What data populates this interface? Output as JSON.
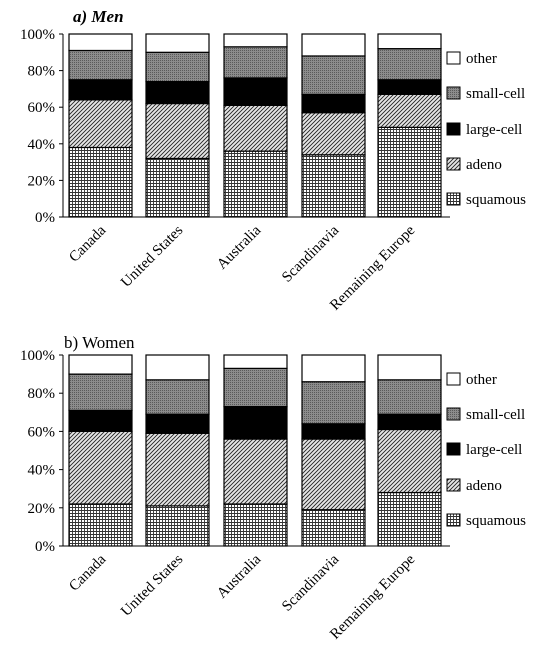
{
  "chart_data": [
    {
      "type": "bar",
      "stacked": true,
      "title": "a) Men",
      "categories": [
        "Canada",
        "United States",
        "Australia",
        "Scandinavia",
        "Remaining Europe"
      ],
      "series": [
        {
          "name": "squamous",
          "values": [
            38,
            32,
            36,
            34,
            49
          ]
        },
        {
          "name": "adeno",
          "values": [
            26,
            30,
            25,
            23,
            18
          ]
        },
        {
          "name": "large-cell",
          "values": [
            11,
            12,
            15,
            10,
            8
          ]
        },
        {
          "name": "small-cell",
          "values": [
            16,
            16,
            17,
            21,
            17
          ]
        },
        {
          "name": "other",
          "values": [
            9,
            10,
            7,
            12,
            8
          ]
        }
      ],
      "yticks": [
        "0%",
        "20%",
        "40%",
        "60%",
        "80%",
        "100%"
      ],
      "ylim": [
        0,
        100
      ],
      "grid": false,
      "legend": "right"
    },
    {
      "type": "bar",
      "stacked": true,
      "title": "b) Women",
      "categories": [
        "Canada",
        "United States",
        "Australia",
        "Scandinavia",
        "Remaining Europe"
      ],
      "series": [
        {
          "name": "squamous",
          "values": [
            22,
            21,
            22,
            19,
            28
          ]
        },
        {
          "name": "adeno",
          "values": [
            38,
            38,
            34,
            37,
            33
          ]
        },
        {
          "name": "large-cell",
          "values": [
            11,
            10,
            17,
            8,
            8
          ]
        },
        {
          "name": "small-cell",
          "values": [
            19,
            18,
            20,
            22,
            18
          ]
        },
        {
          "name": "other",
          "values": [
            10,
            13,
            7,
            14,
            13
          ]
        }
      ],
      "yticks": [
        "0%",
        "20%",
        "40%",
        "60%",
        "80%",
        "100%"
      ],
      "ylim": [
        0,
        100
      ],
      "grid": false,
      "legend": "right"
    }
  ],
  "legend_order": [
    "other",
    "small-cell",
    "large-cell",
    "adeno",
    "squamous"
  ],
  "series_fills": {
    "squamous": "pat-grid",
    "adeno": "pat-diag",
    "large-cell": "#000000",
    "small-cell": "pat-dots",
    "other": "#ffffff"
  }
}
